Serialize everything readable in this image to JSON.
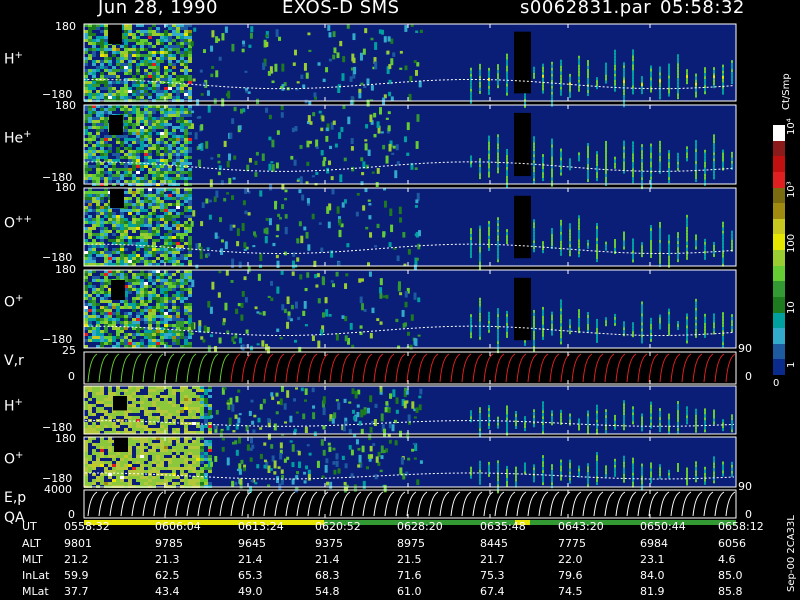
{
  "header": {
    "date": "Jun 28, 1990",
    "instrument": "EXOS-D SMS",
    "file": "s0062831.par",
    "time": "05:58:32"
  },
  "panels": [
    {
      "label": "H",
      "sup": "+",
      "tick_top": "180",
      "tick_bottom": "−180"
    },
    {
      "label": "He",
      "sup": "+",
      "tick_top": "180",
      "tick_bottom": "−180"
    },
    {
      "label": "O",
      "sup": "++",
      "tick_top": "180",
      "tick_bottom": "−180"
    },
    {
      "label": "O",
      "sup": "+",
      "tick_top": "180",
      "tick_bottom": "−180"
    },
    {
      "label": "V,r",
      "sup": "",
      "tick_top": "25",
      "tick_bottom": "0"
    },
    {
      "label": "H",
      "sup": "+",
      "tick_top": "180",
      "tick_bottom": "−180"
    },
    {
      "label": "O",
      "sup": "+",
      "tick_top": "180",
      "tick_bottom": "−180"
    },
    {
      "label": "E,p",
      "sup": "",
      "tick_top": "4000",
      "tick_bottom": "0"
    }
  ],
  "qa_label": "QA",
  "right_ticks": {
    "vr_top": "90",
    "vr_bottom": "0",
    "ep_top": "90",
    "ep_bottom": "0"
  },
  "colorbar": {
    "unit": "Ct/Smp",
    "ticks": [
      "10⁴",
      "10³",
      "100",
      "10",
      "1",
      "0"
    ],
    "colors": [
      "#ffffff",
      "#8b1a1a",
      "#c01010",
      "#e02020",
      "#7a6a10",
      "#a08a10",
      "#c8c820",
      "#e6e600",
      "#9acd32",
      "#66cc33",
      "#339933",
      "#1e7a1e",
      "#00a0a0",
      "#33aacc",
      "#1e5aa0",
      "#0a2a8c"
    ]
  },
  "footer_id": "Sep-00 2CA33L",
  "table": {
    "rows": [
      {
        "label": "UT",
        "values": [
          "0558:32",
          "0606:04",
          "0613:24",
          "0620:52",
          "0628:20",
          "0635:48",
          "0643:20",
          "0650:44",
          "0658:12"
        ]
      },
      {
        "label": "ALT",
        "values": [
          "9801",
          "9785",
          "9645",
          "9375",
          "8975",
          "8445",
          "7775",
          "6984",
          "6056"
        ]
      },
      {
        "label": "MLT",
        "values": [
          "21.2",
          "21.3",
          "21.4",
          "21.4",
          "21.5",
          "21.7",
          "22.0",
          "23.1",
          "4.6"
        ]
      },
      {
        "label": "InLat",
        "values": [
          "59.9",
          "62.5",
          "65.3",
          "68.3",
          "71.6",
          "75.3",
          "79.6",
          "84.0",
          "85.0"
        ]
      },
      {
        "label": "MLat",
        "values": [
          "37.7",
          "43.4",
          "49.0",
          "54.8",
          "61.0",
          "67.4",
          "74.5",
          "81.9",
          "85.8"
        ]
      }
    ]
  },
  "chart_data": {
    "type": "heatmap",
    "title": "Jun 28, 1990 EXOS-D SMS s0062831.par 05:58:32",
    "x_ticks": [
      "0558:32",
      "0606:04",
      "0613:24",
      "0620:52",
      "0628:20",
      "0635:48",
      "0643:20",
      "0650:44",
      "0658:12"
    ],
    "panels": [
      {
        "name": "H+",
        "ylim": [
          -180,
          180
        ]
      },
      {
        "name": "He+",
        "ylim": [
          -180,
          180
        ]
      },
      {
        "name": "O++",
        "ylim": [
          -180,
          180
        ]
      },
      {
        "name": "O+",
        "ylim": [
          -180,
          180
        ]
      },
      {
        "name": "V,r",
        "ylim": [
          0,
          25
        ],
        "right_ylim": [
          0,
          90
        ]
      },
      {
        "name": "H+",
        "ylim": [
          -180,
          180
        ]
      },
      {
        "name": "O+",
        "ylim": [
          -180,
          180
        ]
      },
      {
        "name": "E,p",
        "ylim": [
          0,
          4000
        ],
        "right_ylim": [
          0,
          90
        ]
      }
    ],
    "colorbar": {
      "label": "Ct/Smp",
      "scale": "log",
      "ticks": [
        "1",
        "10",
        "100",
        "10³",
        "10⁴"
      ]
    }
  }
}
